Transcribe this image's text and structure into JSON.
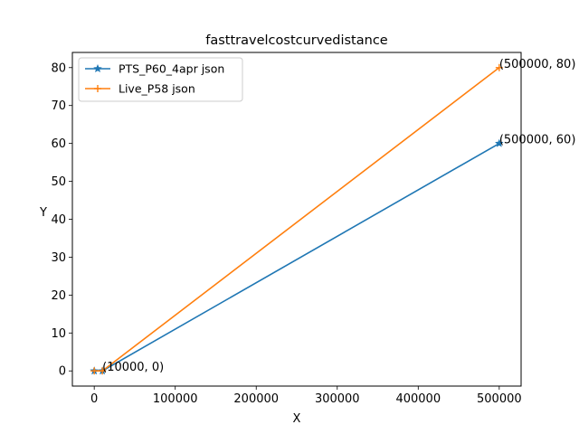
{
  "chart_data": {
    "type": "line",
    "title": "fasttravelcostcurvedistance",
    "xlabel": "X",
    "ylabel": "Y",
    "xlim": [
      -27000,
      527000
    ],
    "ylim": [
      -4,
      84
    ],
    "xticks": [
      0,
      100000,
      200000,
      300000,
      400000,
      500000
    ],
    "yticks": [
      0,
      10,
      20,
      30,
      40,
      50,
      60,
      70,
      80
    ],
    "grid": false,
    "legend_position": "upper-left",
    "series": [
      {
        "name": "PTS_P60_4apr json",
        "color": "#1f77b4",
        "marker": "star",
        "x": [
          0,
          10000,
          500000
        ],
        "y": [
          0,
          0,
          60
        ]
      },
      {
        "name": "Live_P58 json",
        "color": "#ff7f0e",
        "marker": "plus",
        "x": [
          0,
          10000,
          500000
        ],
        "y": [
          0,
          0,
          80
        ]
      }
    ],
    "annotations": [
      {
        "text": "(10000, 0)",
        "x": 10000,
        "y": 0
      },
      {
        "text": "(500000, 60)",
        "x": 500000,
        "y": 60
      },
      {
        "text": "(500000, 80)",
        "x": 500000,
        "y": 80
      }
    ]
  }
}
